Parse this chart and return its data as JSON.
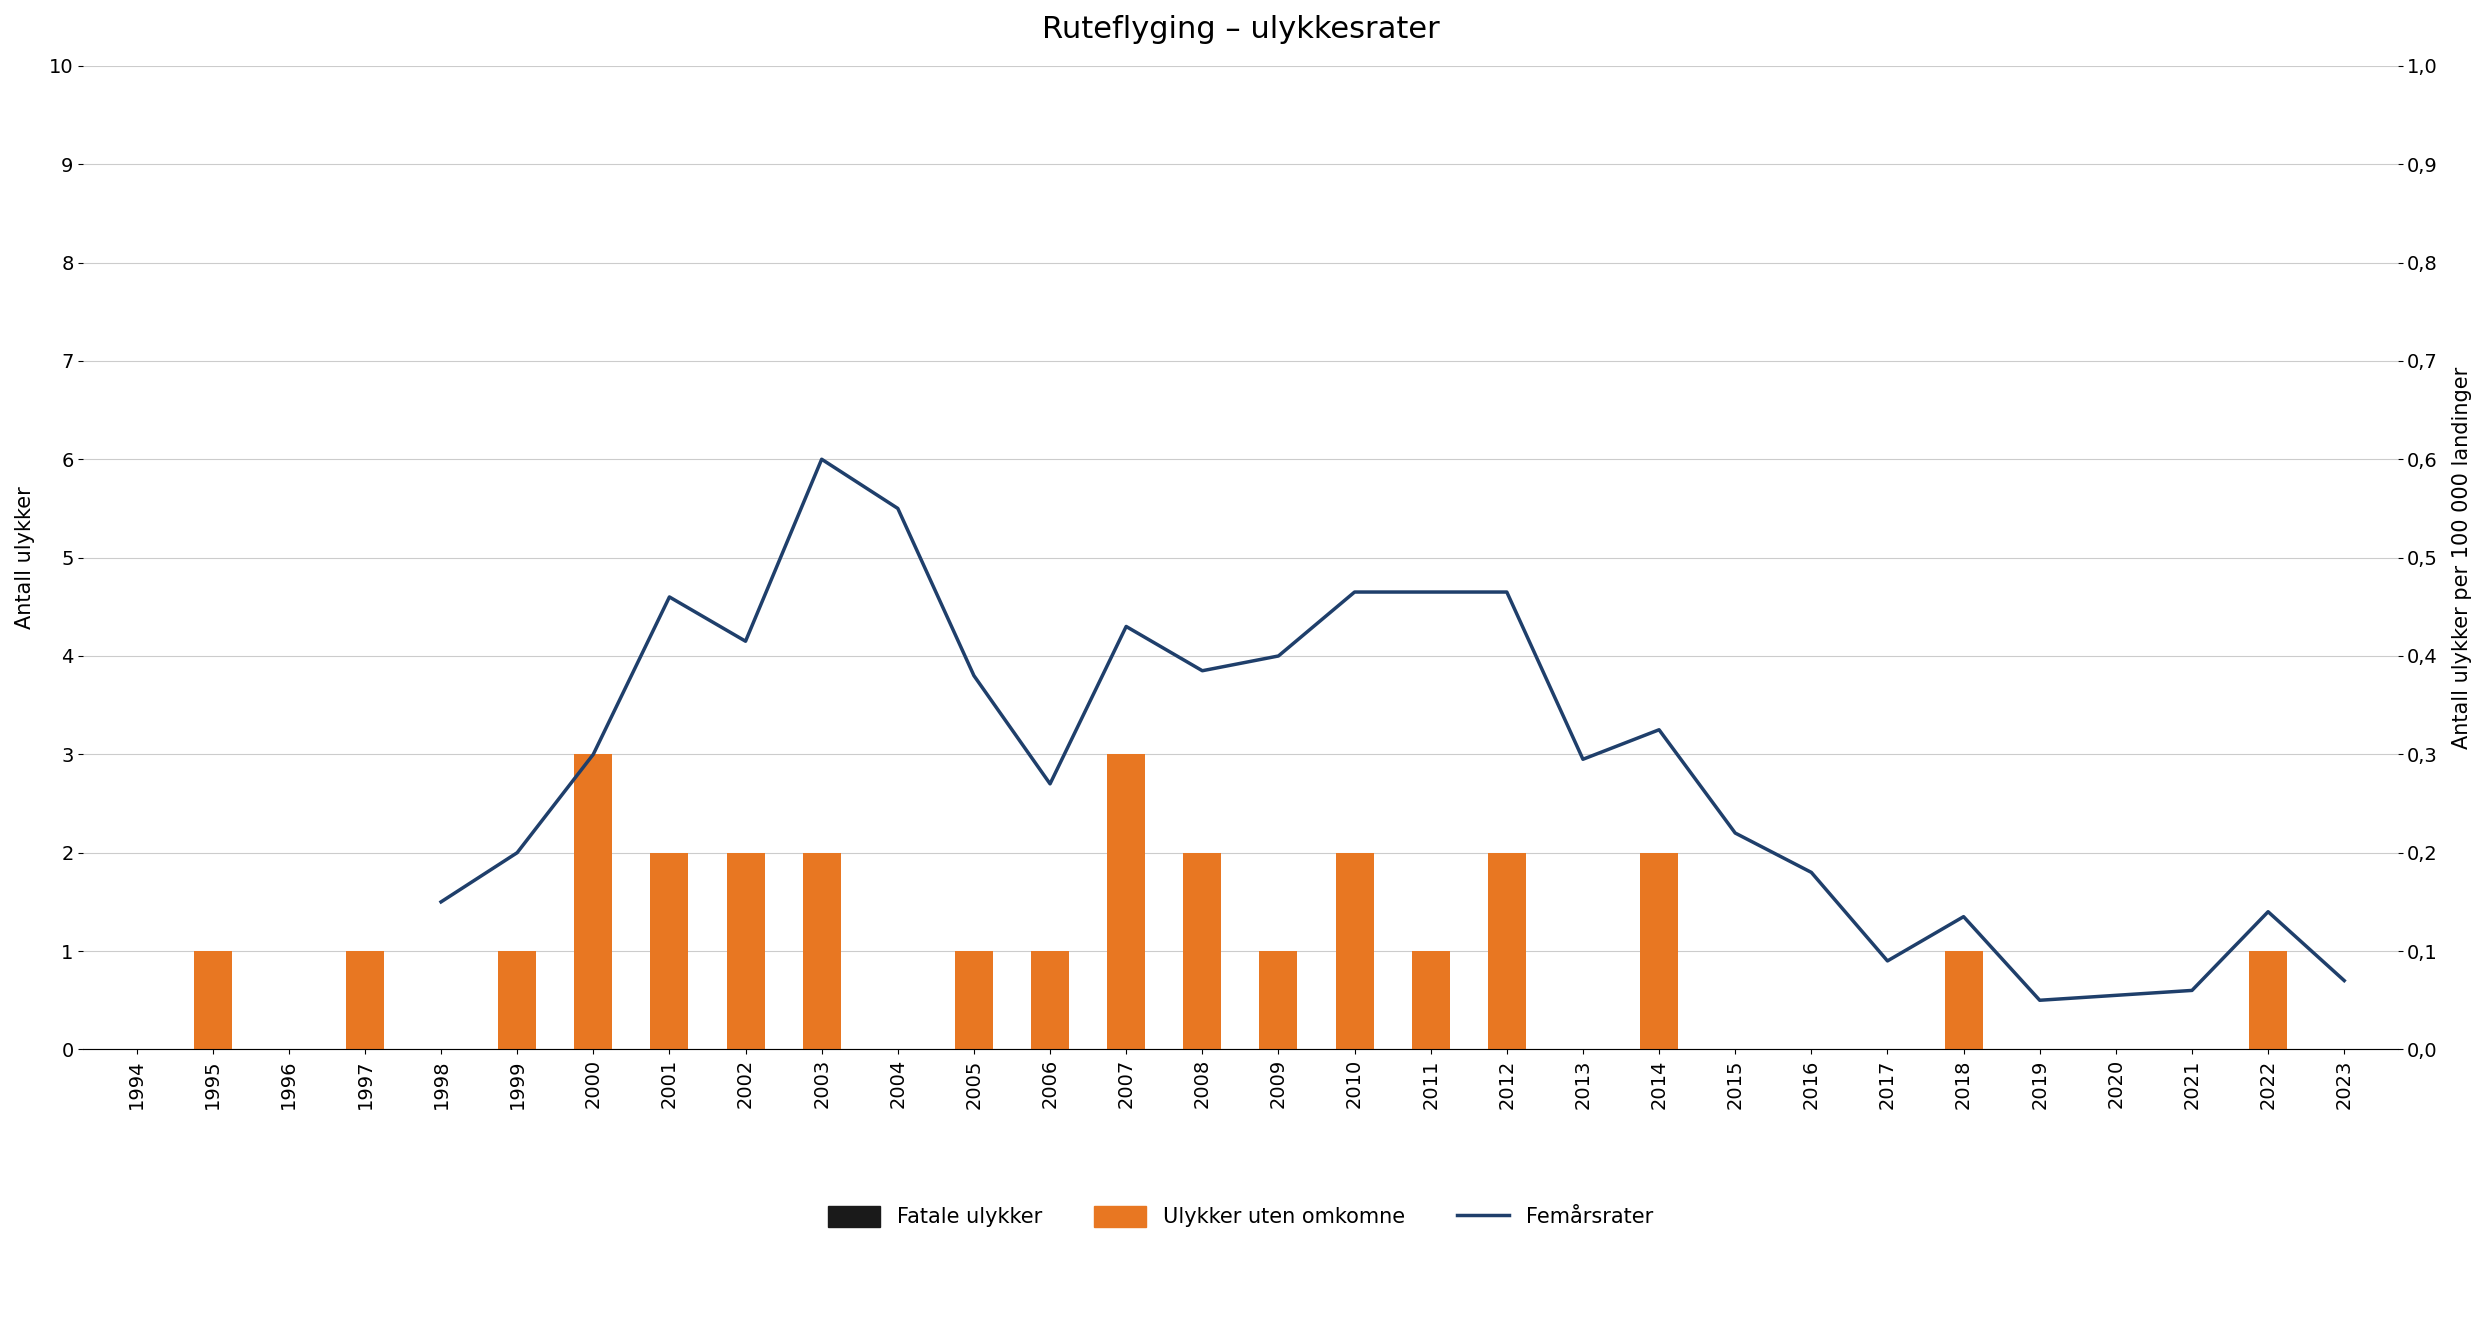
{
  "title": "Ruteflyging – ulykkesrater",
  "years": [
    1994,
    1995,
    1996,
    1997,
    1998,
    1999,
    2000,
    2001,
    2002,
    2003,
    2004,
    2005,
    2006,
    2007,
    2008,
    2009,
    2010,
    2011,
    2012,
    2013,
    2014,
    2015,
    2016,
    2017,
    2018,
    2019,
    2020,
    2021,
    2022,
    2023
  ],
  "fatal_accidents": [
    0,
    0,
    0,
    0,
    0,
    0,
    0,
    0,
    0,
    0,
    0,
    0,
    0,
    0,
    0,
    0,
    0,
    0,
    0,
    0,
    0,
    0,
    0,
    0,
    0,
    0,
    0,
    0,
    0,
    0
  ],
  "non_fatal_accidents": [
    0,
    1,
    0,
    1,
    0,
    1,
    3,
    2,
    2,
    2,
    0,
    1,
    1,
    3,
    2,
    1,
    2,
    1,
    2,
    0,
    2,
    0,
    0,
    0,
    1,
    0,
    0,
    0,
    1,
    0
  ],
  "five_year_rate": [
    null,
    null,
    null,
    null,
    0.15,
    0.2,
    0.3,
    0.46,
    0.415,
    0.6,
    0.55,
    0.38,
    0.27,
    0.43,
    0.385,
    0.4,
    0.465,
    0.465,
    0.465,
    0.295,
    0.325,
    0.22,
    0.18,
    0.09,
    0.135,
    0.05,
    0.055,
    0.06,
    0.14,
    0.07
  ],
  "ylabel_left": "Antall ulykker",
  "ylabel_right": "Antall ulykker per 100 000 landinger",
  "ylim_left": [
    0,
    10
  ],
  "ylim_right": [
    0,
    1.0
  ],
  "yticks_left": [
    0,
    1,
    2,
    3,
    4,
    5,
    6,
    7,
    8,
    9,
    10
  ],
  "yticks_right": [
    0.0,
    0.1,
    0.2,
    0.3,
    0.4,
    0.5,
    0.6,
    0.7,
    0.8,
    0.9,
    1.0
  ],
  "ytick_labels_right": [
    "0,0",
    "0,1",
    "0,2",
    "0,3",
    "0,4",
    "0,5",
    "0,6",
    "0,7",
    "0,8",
    "0,9",
    "1,0"
  ],
  "bar_color_fatal": "#1a1a1a",
  "bar_color_nonfatal": "#E87722",
  "line_color": "#1F3F6B",
  "background_color": "#ffffff",
  "legend_fatal": "Fatale ulykker",
  "legend_nonfatal": "Ulykker uten omkomne",
  "legend_rate": "Femårsrater",
  "title_fontsize": 22,
  "axis_label_fontsize": 15,
  "tick_fontsize": 14,
  "legend_fontsize": 15,
  "grid_color": "#cccccc",
  "line_width": 2.5,
  "bar_width": 0.5
}
